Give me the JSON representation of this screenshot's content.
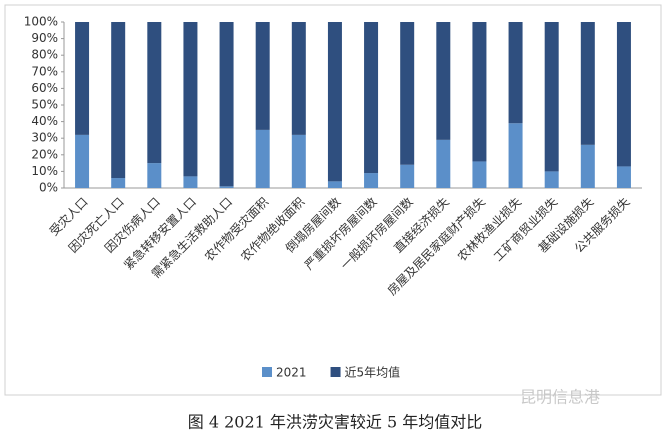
{
  "chart_data": {
    "type": "stacked_bar_100",
    "title": "图 4 2021 年洪涝灾害较近 5 年均值对比",
    "watermark": "昆明信息港",
    "categories": [
      "受灾人口",
      "因灾死亡人口",
      "因灾伤病人口",
      "紧急转移安置人口",
      "需紧急生活救助人口",
      "农作物受灾面积",
      "农作物绝收面积",
      "倒塌房屋间数",
      "严重损坏房屋间数",
      "一般损坏房屋间数",
      "直接经济损失",
      "房屋及居民家庭财产损失",
      "农林牧渔业损失",
      "工矿商贸业损失",
      "基础设施损失",
      "公共服务损失"
    ],
    "series": [
      {
        "name": "2021",
        "color": "#5b8fc9",
        "values": [
          32,
          6,
          15,
          7,
          1,
          35,
          32,
          4,
          9,
          14,
          29,
          16,
          39,
          10,
          26,
          13
        ]
      },
      {
        "name": "近5年均值",
        "color": "#2f4f7f",
        "values": [
          68,
          94,
          85,
          93,
          99,
          65,
          68,
          96,
          91,
          86,
          71,
          84,
          61,
          90,
          74,
          87
        ]
      }
    ],
    "ylim": [
      0,
      100
    ],
    "yticks": [
      {
        "value": 0,
        "label": "0%"
      },
      {
        "value": 10,
        "label": "10%"
      },
      {
        "value": 20,
        "label": "20%"
      },
      {
        "value": 30,
        "label": "30%"
      },
      {
        "value": 40,
        "label": "40%"
      },
      {
        "value": 50,
        "label": "50%"
      },
      {
        "value": 60,
        "label": "60%"
      },
      {
        "value": 70,
        "label": "70%"
      },
      {
        "value": 80,
        "label": "80%"
      },
      {
        "value": 90,
        "label": "90%"
      },
      {
        "value": 100,
        "label": "100%"
      }
    ],
    "legend": "bottom"
  }
}
